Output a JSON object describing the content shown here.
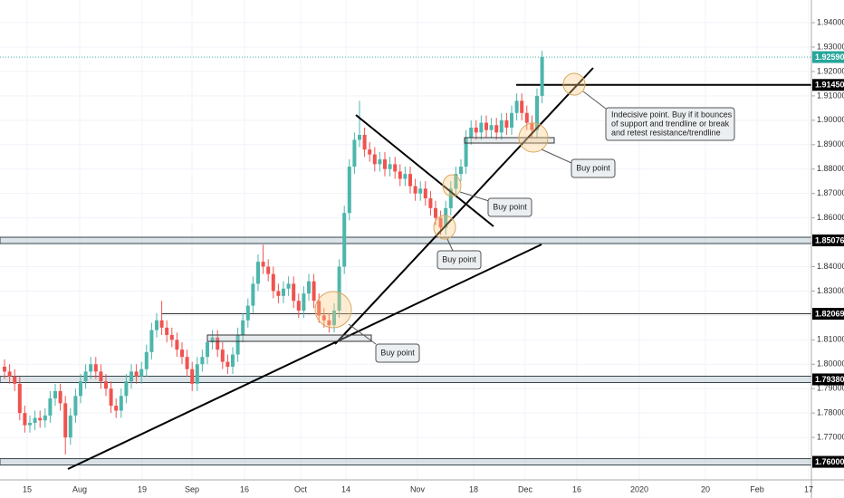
{
  "chart_data": {
    "type": "candlestick",
    "up_color": "#4db6ac",
    "down_color": "#ef5350",
    "ylim": [
      1.7526,
      1.9493
    ],
    "yticks": [
      {
        "value": 1.76,
        "label": "1.76000"
      },
      {
        "value": 1.77,
        "label": "1.77000"
      },
      {
        "value": 1.78,
        "label": "1.78000"
      },
      {
        "value": 1.79,
        "label": "1.79000"
      },
      {
        "value": 1.8,
        "label": "1.80000"
      },
      {
        "value": 1.81,
        "label": "1.81000"
      },
      {
        "value": 1.82,
        "label": "1.82000"
      },
      {
        "value": 1.83,
        "label": "1.83000"
      },
      {
        "value": 1.84,
        "label": "1.84000"
      },
      {
        "value": 1.85,
        "label": "1.85000"
      },
      {
        "value": 1.86,
        "label": "1.86000"
      },
      {
        "value": 1.87,
        "label": "1.87000"
      },
      {
        "value": 1.88,
        "label": "1.88000"
      },
      {
        "value": 1.89,
        "label": "1.89000"
      },
      {
        "value": 1.9,
        "label": "1.90000"
      },
      {
        "value": 1.91,
        "label": "1.91000"
      },
      {
        "value": 1.92,
        "label": "1.92000"
      },
      {
        "value": 1.93,
        "label": "1.93000"
      },
      {
        "value": 1.94,
        "label": "1.94000"
      }
    ],
    "x_labels": [
      "15",
      "Aug",
      "19",
      "Sep",
      "16",
      "Oct",
      "14",
      "Nov",
      "18",
      "Dec",
      "16",
      "2020",
      "20",
      "Feb",
      "17"
    ],
    "levels": [
      {
        "value": 1.9259,
        "label": "1.92590"
      },
      {
        "value": 1.9145,
        "label": "1.91450"
      },
      {
        "value": 1.85076,
        "label": "1.85076"
      },
      {
        "value": 1.82069,
        "label": "1.82069"
      },
      {
        "value": 1.7938,
        "label": "1.79380"
      },
      {
        "value": 1.76,
        "label": "1.76000"
      }
    ],
    "annotations": [
      "Buy point",
      "Buy point",
      "Buy point",
      "Buy point",
      [
        "Indecisive point. Buy if it bounces",
        "of support and trendline or break",
        "and retest resistance/trendline"
      ]
    ],
    "candles": [
      [
        1.799,
        1.802,
        1.794,
        1.797
      ],
      [
        1.797,
        1.8,
        1.792,
        1.795
      ],
      [
        1.795,
        1.798,
        1.789,
        1.792
      ],
      [
        1.792,
        1.795,
        1.777,
        1.78
      ],
      [
        1.78,
        1.783,
        1.772,
        1.775
      ],
      [
        1.775,
        1.779,
        1.772,
        1.776
      ],
      [
        1.776,
        1.781,
        1.773,
        1.778
      ],
      [
        1.778,
        1.781,
        1.774,
        1.777
      ],
      [
        1.777,
        1.782,
        1.774,
        1.779
      ],
      [
        1.779,
        1.789,
        1.776,
        1.786
      ],
      [
        1.786,
        1.792,
        1.783,
        1.789
      ],
      [
        1.789,
        1.792,
        1.781,
        1.784
      ],
      [
        1.784,
        1.787,
        1.763,
        1.77
      ],
      [
        1.77,
        1.782,
        1.767,
        1.779
      ],
      [
        1.779,
        1.79,
        1.776,
        1.787
      ],
      [
        1.787,
        1.796,
        1.784,
        1.793
      ],
      [
        1.793,
        1.8,
        1.79,
        1.797
      ],
      [
        1.797,
        1.803,
        1.794,
        1.8
      ],
      [
        1.8,
        1.803,
        1.794,
        1.797
      ],
      [
        1.797,
        1.8,
        1.79,
        1.793
      ],
      [
        1.793,
        1.796,
        1.787,
        1.79
      ],
      [
        1.79,
        1.793,
        1.78,
        1.783
      ],
      [
        1.783,
        1.786,
        1.778,
        1.781
      ],
      [
        1.781,
        1.79,
        1.778,
        1.787
      ],
      [
        1.787,
        1.796,
        1.784,
        1.793
      ],
      [
        1.793,
        1.8,
        1.79,
        1.797
      ],
      [
        1.797,
        1.8,
        1.792,
        1.795
      ],
      [
        1.795,
        1.801,
        1.792,
        1.798
      ],
      [
        1.798,
        1.808,
        1.795,
        1.805
      ],
      [
        1.805,
        1.817,
        1.802,
        1.814
      ],
      [
        1.814,
        1.821,
        1.811,
        1.818
      ],
      [
        1.818,
        1.826,
        1.812,
        1.815
      ],
      [
        1.815,
        1.818,
        1.809,
        1.812
      ],
      [
        1.812,
        1.815,
        1.807,
        1.81
      ],
      [
        1.81,
        1.813,
        1.803,
        1.806
      ],
      [
        1.806,
        1.809,
        1.8,
        1.803
      ],
      [
        1.803,
        1.806,
        1.795,
        1.798
      ],
      [
        1.798,
        1.801,
        1.789,
        1.792
      ],
      [
        1.792,
        1.803,
        1.789,
        1.8
      ],
      [
        1.8,
        1.806,
        1.797,
        1.803
      ],
      [
        1.803,
        1.812,
        1.8,
        1.809
      ],
      [
        1.809,
        1.814,
        1.806,
        1.811
      ],
      [
        1.811,
        1.814,
        1.803,
        1.806
      ],
      [
        1.806,
        1.809,
        1.798,
        1.801
      ],
      [
        1.801,
        1.804,
        1.796,
        1.799
      ],
      [
        1.799,
        1.807,
        1.796,
        1.804
      ],
      [
        1.804,
        1.815,
        1.801,
        1.812
      ],
      [
        1.812,
        1.821,
        1.809,
        1.818
      ],
      [
        1.818,
        1.827,
        1.815,
        1.824
      ],
      [
        1.824,
        1.836,
        1.821,
        1.833
      ],
      [
        1.833,
        1.845,
        1.83,
        1.842
      ],
      [
        1.842,
        1.849,
        1.837,
        1.84
      ],
      [
        1.84,
        1.843,
        1.834,
        1.837
      ],
      [
        1.837,
        1.84,
        1.827,
        1.83
      ],
      [
        1.83,
        1.833,
        1.825,
        1.828
      ],
      [
        1.828,
        1.834,
        1.825,
        1.831
      ],
      [
        1.831,
        1.836,
        1.828,
        1.833
      ],
      [
        1.833,
        1.836,
        1.823,
        1.826
      ],
      [
        1.826,
        1.829,
        1.819,
        1.822
      ],
      [
        1.822,
        1.832,
        1.819,
        1.829
      ],
      [
        1.829,
        1.837,
        1.826,
        1.834
      ],
      [
        1.834,
        1.837,
        1.823,
        1.826
      ],
      [
        1.826,
        1.829,
        1.817,
        1.82
      ],
      [
        1.82,
        1.823,
        1.815,
        1.818
      ],
      [
        1.818,
        1.821,
        1.813,
        1.816
      ],
      [
        1.816,
        1.825,
        1.813,
        1.822
      ],
      [
        1.822,
        1.843,
        1.819,
        1.84
      ],
      [
        1.84,
        1.865,
        1.837,
        1.862
      ],
      [
        1.862,
        1.884,
        1.859,
        1.881
      ],
      [
        1.881,
        1.895,
        1.878,
        1.892
      ],
      [
        1.892,
        1.908,
        1.889,
        1.894
      ],
      [
        1.894,
        1.897,
        1.885,
        1.888
      ],
      [
        1.888,
        1.891,
        1.883,
        1.886
      ],
      [
        1.886,
        1.889,
        1.879,
        1.882
      ],
      [
        1.882,
        1.887,
        1.879,
        1.884
      ],
      [
        1.884,
        1.887,
        1.877,
        1.88
      ],
      [
        1.88,
        1.885,
        1.877,
        1.882
      ],
      [
        1.882,
        1.885,
        1.876,
        1.879
      ],
      [
        1.879,
        1.882,
        1.873,
        1.876
      ],
      [
        1.876,
        1.881,
        1.873,
        1.878
      ],
      [
        1.878,
        1.881,
        1.87,
        1.873
      ],
      [
        1.873,
        1.876,
        1.867,
        1.87
      ],
      [
        1.87,
        1.875,
        1.867,
        1.872
      ],
      [
        1.872,
        1.875,
        1.865,
        1.868
      ],
      [
        1.868,
        1.871,
        1.861,
        1.864
      ],
      [
        1.864,
        1.867,
        1.857,
        1.86
      ],
      [
        1.86,
        1.863,
        1.853,
        1.856
      ],
      [
        1.856,
        1.867,
        1.853,
        1.864
      ],
      [
        1.864,
        1.875,
        1.861,
        1.872
      ],
      [
        1.872,
        1.881,
        1.869,
        1.878
      ],
      [
        1.878,
        1.884,
        1.875,
        1.881
      ],
      [
        1.881,
        1.896,
        1.878,
        1.893
      ],
      [
        1.893,
        1.9,
        1.89,
        1.897
      ],
      [
        1.897,
        1.9,
        1.892,
        1.895
      ],
      [
        1.895,
        1.902,
        1.892,
        1.899
      ],
      [
        1.899,
        1.902,
        1.893,
        1.896
      ],
      [
        1.896,
        1.901,
        1.893,
        1.898
      ],
      [
        1.898,
        1.901,
        1.892,
        1.895
      ],
      [
        1.895,
        1.903,
        1.892,
        1.9
      ],
      [
        1.9,
        1.903,
        1.894,
        1.897
      ],
      [
        1.897,
        1.906,
        1.894,
        1.903
      ],
      [
        1.903,
        1.911,
        1.9,
        1.908
      ],
      [
        1.908,
        1.911,
        1.9,
        1.903
      ],
      [
        1.903,
        1.906,
        1.896,
        1.899
      ],
      [
        1.899,
        1.902,
        1.893,
        1.896
      ],
      [
        1.896,
        1.913,
        1.893,
        1.91
      ],
      [
        1.91,
        1.9285,
        1.907,
        1.9259
      ]
    ]
  }
}
